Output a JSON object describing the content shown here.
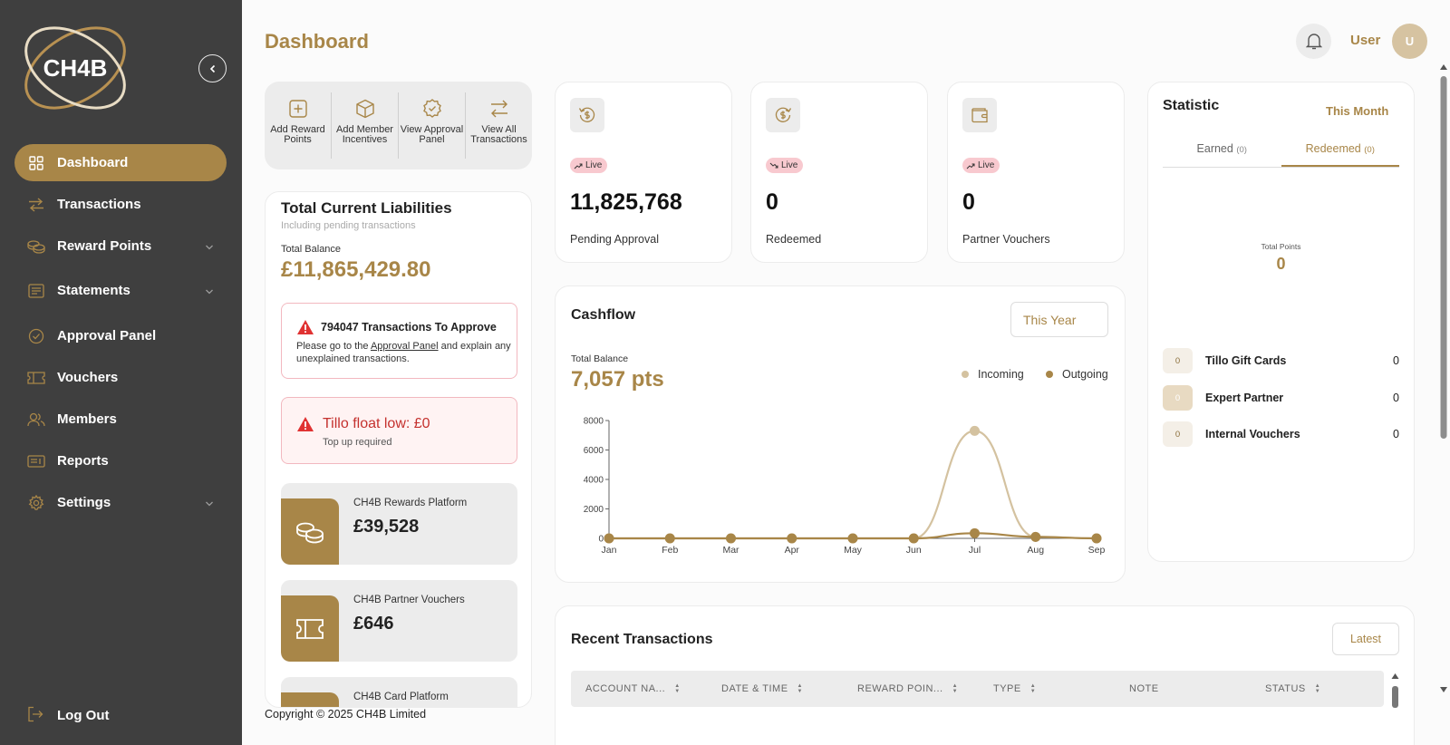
{
  "sidebar": {
    "logo_text": "CH4B",
    "nav": [
      {
        "label": "Dashboard",
        "icon": "grid-icon"
      },
      {
        "label": "Transactions",
        "icon": "arrows-swap-icon"
      },
      {
        "label": "Reward Points",
        "icon": "coins-icon"
      },
      {
        "label": "Statements",
        "icon": "receipt-icon"
      },
      {
        "label": "Approval Panel",
        "icon": "check-circle-icon"
      },
      {
        "label": "Vouchers",
        "icon": "ticket-icon"
      },
      {
        "label": "Members",
        "icon": "users-icon"
      },
      {
        "label": "Reports",
        "icon": "report-icon"
      },
      {
        "label": "Settings",
        "icon": "gear-icon"
      }
    ],
    "logout_label": "Log Out"
  },
  "header": {
    "title": "Dashboard",
    "user_name": "User",
    "avatar_initial": "U"
  },
  "quick_actions": [
    {
      "label": "Add Reward Points"
    },
    {
      "label": "Add Member Incentives"
    },
    {
      "label": "View Approval Panel"
    },
    {
      "label": "View All Transactions"
    }
  ],
  "liabilities": {
    "title": "Total Current Liabilities",
    "subtitle": "Including pending transactions",
    "total_label": "Total Balance",
    "total_value": "£11,865,429.80",
    "approve_alert": {
      "title": "794047 Transactions To Approve",
      "body_prefix": "Please go to the ",
      "link": "Approval Panel",
      "body_suffix": " and explain any unexplained transactions."
    },
    "float_alert": {
      "title": "Tillo float low: £0",
      "sub": "Top up required"
    },
    "balances": [
      {
        "name": "CH4B Rewards Platform",
        "value": "£39,528"
      },
      {
        "name": "CH4B Partner Vouchers",
        "value": "£646"
      },
      {
        "name": "CH4B Card Platform",
        "value": ""
      }
    ]
  },
  "stat_cards": [
    {
      "badge": "Live",
      "trend": "up",
      "value": "11,825,768",
      "label": "Pending Approval"
    },
    {
      "badge": "Live",
      "trend": "down",
      "value": "0",
      "label": "Redeemed"
    },
    {
      "badge": "Live",
      "trend": "up",
      "value": "0",
      "label": "Partner Vouchers"
    }
  ],
  "cashflow": {
    "title": "Cashflow",
    "period": "This Year",
    "total_label": "Total Balance",
    "total_value": "7,057 pts"
  },
  "chart_data": {
    "type": "line",
    "categories": [
      "Jan",
      "Feb",
      "Mar",
      "Apr",
      "May",
      "Jun",
      "Jul",
      "Aug",
      "Sep"
    ],
    "series": [
      {
        "name": "Incoming",
        "color": "#d4c2a0",
        "values": [
          0,
          0,
          0,
          0,
          0,
          0,
          7300,
          100,
          0
        ]
      },
      {
        "name": "Outgoing",
        "color": "#a88648",
        "values": [
          0,
          0,
          0,
          0,
          0,
          0,
          350,
          100,
          0
        ]
      }
    ],
    "yticks": [
      0,
      2000,
      4000,
      6000,
      8000
    ],
    "ylim": [
      0,
      8000
    ],
    "legend": "top-right",
    "grid": false
  },
  "statistic": {
    "title": "Statistic",
    "period": "This Month",
    "tabs": [
      {
        "label": "Earned",
        "count": "(0)"
      },
      {
        "label": "Redeemed",
        "count": "(0)"
      }
    ],
    "total_label": "Total Points",
    "total_value": "0",
    "rows": [
      {
        "pill": "0",
        "name": "Tillo Gift Cards",
        "value": "0"
      },
      {
        "pill": "0",
        "name": "Expert Partner",
        "value": "0"
      },
      {
        "pill": "0",
        "name": "Internal Vouchers",
        "value": "0"
      }
    ]
  },
  "recent": {
    "title": "Recent Transactions",
    "sort": "Latest",
    "columns": [
      "ACCOUNT NA...",
      "DATE & TIME",
      "REWARD POIN...",
      "TYPE",
      "NOTE",
      "STATUS"
    ]
  },
  "footer": {
    "copyright": "Copyright © 2025 CH4B Limited"
  }
}
